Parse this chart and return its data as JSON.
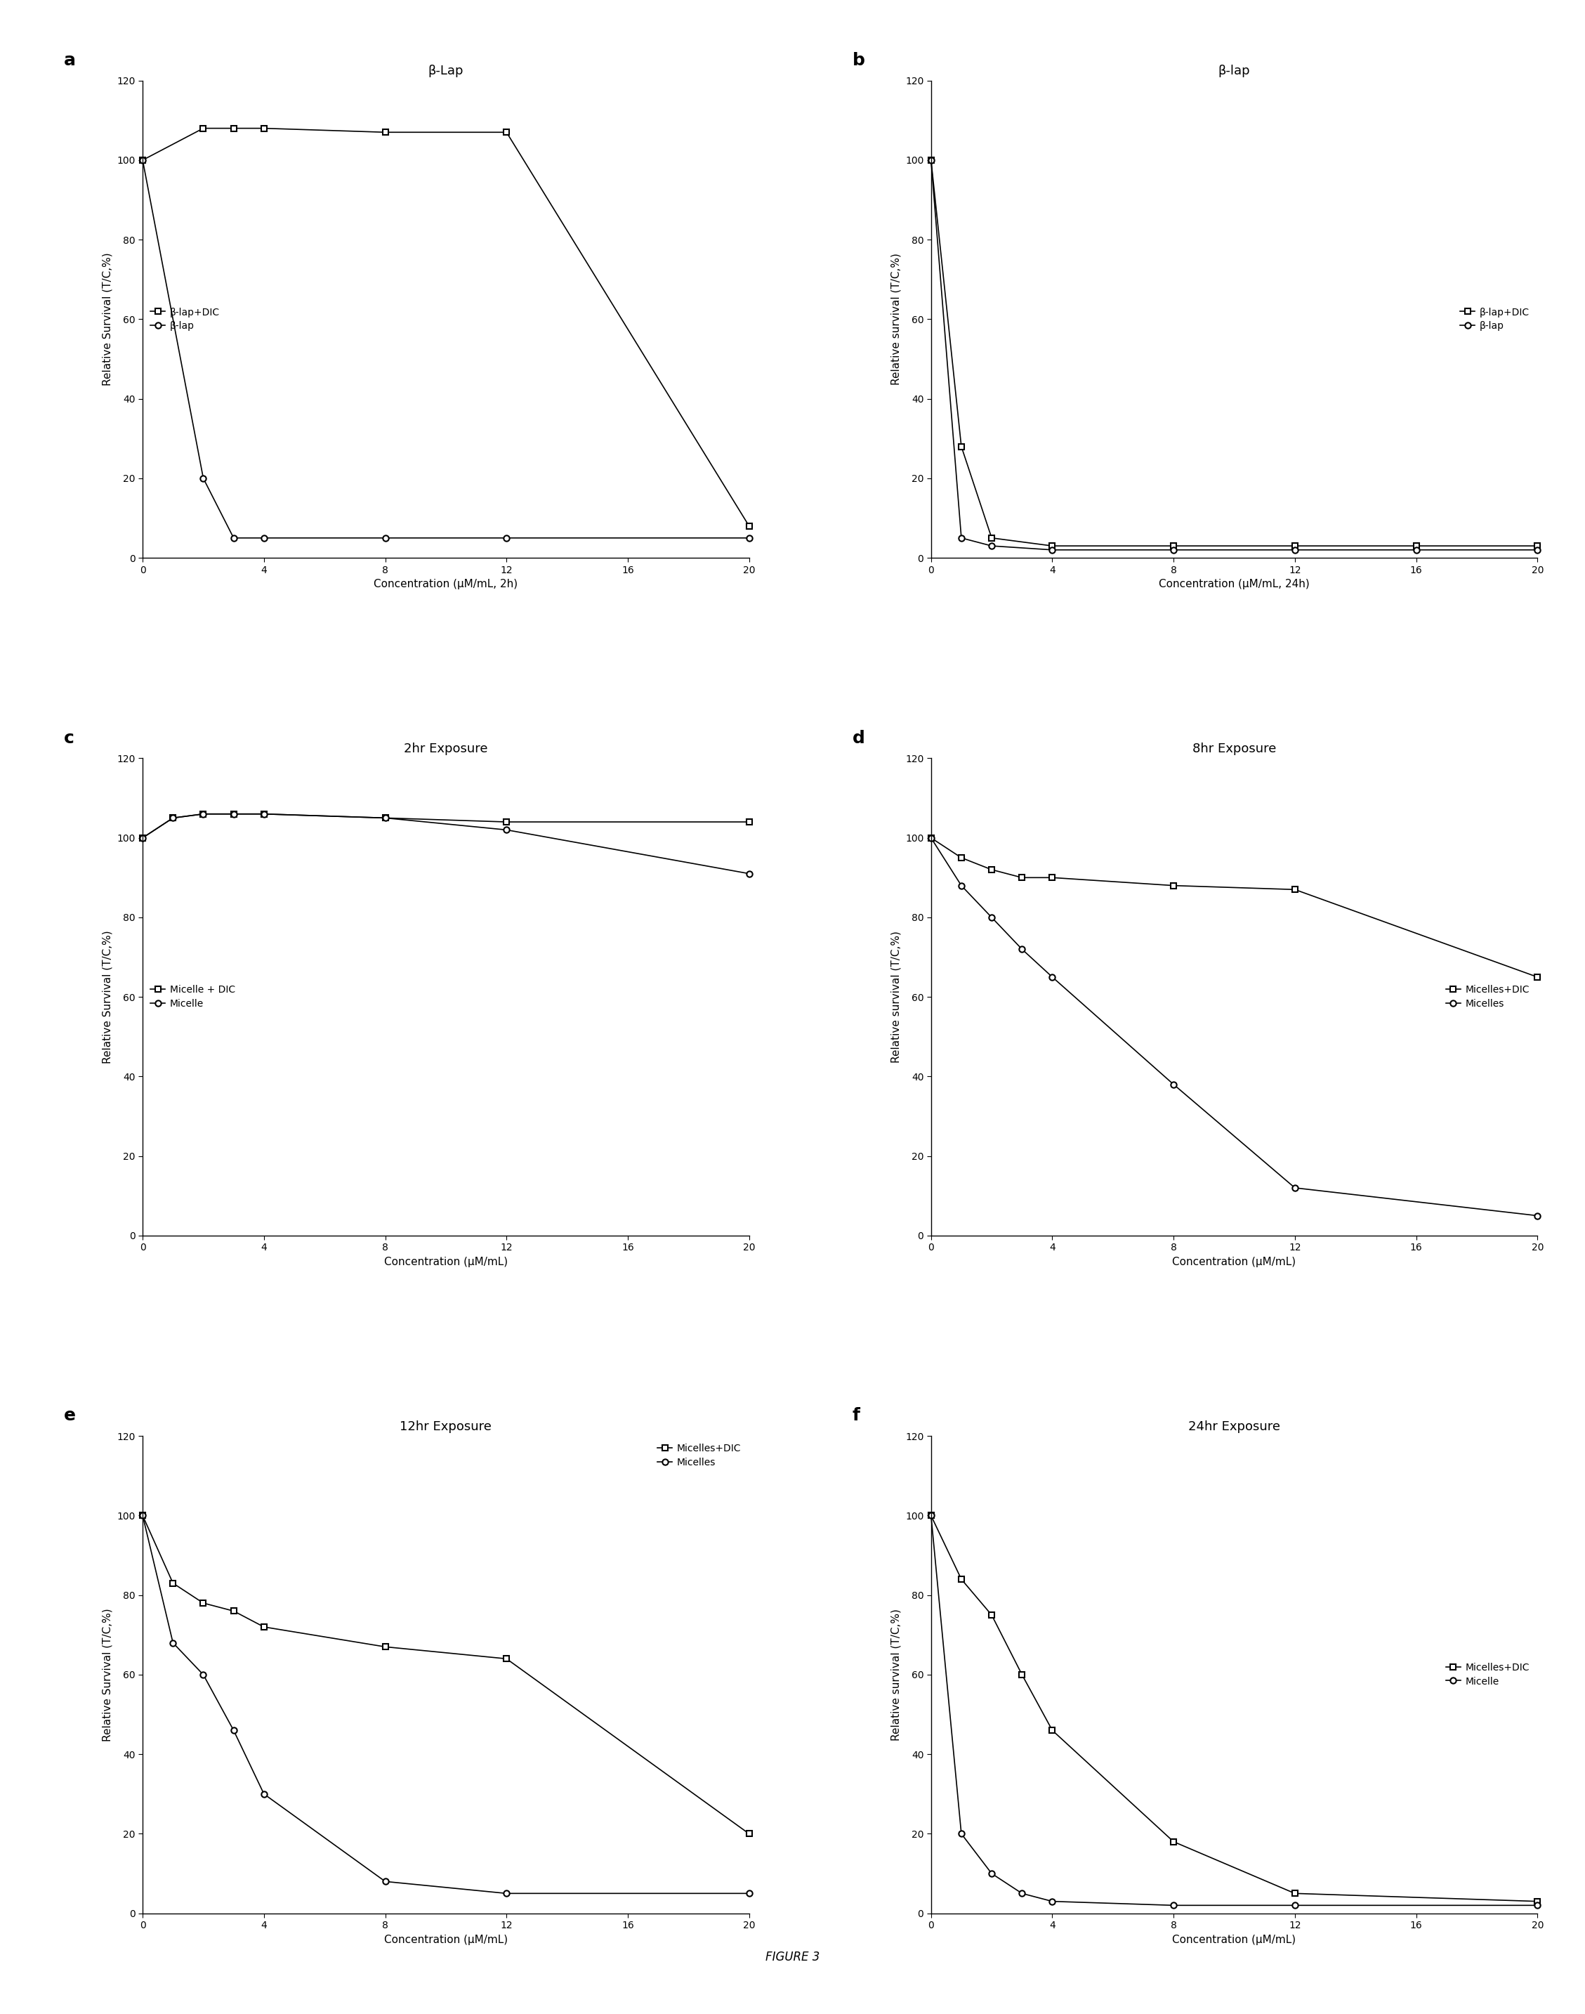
{
  "panel_a": {
    "title": "β-Lap",
    "xlabel": "Concentration (μM/mL, 2h)",
    "ylabel": "Relative Survival (T/C,%)",
    "panel_label": "a",
    "series": [
      {
        "label": "β-lap+DIC",
        "x": [
          0,
          2,
          3,
          4,
          8,
          12,
          20
        ],
        "y": [
          100,
          108,
          108,
          108,
          107,
          107,
          8
        ],
        "marker": "s",
        "color": "#000000"
      },
      {
        "label": "β-lap",
        "x": [
          0,
          2,
          3,
          4,
          8,
          12,
          20
        ],
        "y": [
          100,
          20,
          5,
          5,
          5,
          5,
          5
        ],
        "marker": "o",
        "color": "#000000"
      }
    ],
    "legend_loc": "center left",
    "ylim": [
      0,
      120
    ],
    "xlim": [
      0,
      20
    ],
    "yticks": [
      0,
      20,
      40,
      60,
      80,
      100,
      120
    ],
    "xticks": [
      0,
      4,
      8,
      12,
      16,
      20
    ]
  },
  "panel_b": {
    "title": "β-lap",
    "xlabel": "Concentration (μM/mL, 24h)",
    "ylabel": "Relative survival (T/C,%)",
    "panel_label": "b",
    "series": [
      {
        "label": "β-lap+DIC",
        "x": [
          0,
          1,
          2,
          4,
          8,
          12,
          16,
          20
        ],
        "y": [
          100,
          28,
          5,
          3,
          3,
          3,
          3,
          3
        ],
        "marker": "s",
        "color": "#000000"
      },
      {
        "label": "β-lap",
        "x": [
          0,
          1,
          2,
          4,
          8,
          12,
          16,
          20
        ],
        "y": [
          100,
          5,
          3,
          2,
          2,
          2,
          2,
          2
        ],
        "marker": "o",
        "color": "#000000"
      }
    ],
    "legend_loc": "center right",
    "ylim": [
      0,
      120
    ],
    "xlim": [
      0,
      20
    ],
    "yticks": [
      0,
      20,
      40,
      60,
      80,
      100,
      120
    ],
    "xticks": [
      0,
      4,
      8,
      12,
      16,
      20
    ]
  },
  "panel_c": {
    "title": "2hr Exposure",
    "xlabel": "Concentration (μM/mL)",
    "ylabel": "Relative Survival (T/C,%)",
    "panel_label": "c",
    "series": [
      {
        "label": "Micelle + DIC",
        "x": [
          0,
          1,
          2,
          3,
          4,
          8,
          12,
          20
        ],
        "y": [
          100,
          105,
          106,
          106,
          106,
          105,
          104,
          104
        ],
        "marker": "s",
        "color": "#000000"
      },
      {
        "label": "Micelle",
        "x": [
          0,
          1,
          2,
          3,
          4,
          8,
          12,
          20
        ],
        "y": [
          100,
          105,
          106,
          106,
          106,
          105,
          102,
          91
        ],
        "marker": "o",
        "color": "#000000"
      }
    ],
    "legend_loc": "center left",
    "ylim": [
      0,
      120
    ],
    "xlim": [
      0,
      20
    ],
    "yticks": [
      0,
      20,
      40,
      60,
      80,
      100,
      120
    ],
    "xticks": [
      0,
      4,
      8,
      12,
      16,
      20
    ]
  },
  "panel_d": {
    "title": "8hr Exposure",
    "xlabel": "Concentration (μM/mL)",
    "ylabel": "Relative survival (T/C,%)",
    "panel_label": "d",
    "series": [
      {
        "label": "Micelles+DIC",
        "x": [
          0,
          1,
          2,
          3,
          4,
          8,
          12,
          20
        ],
        "y": [
          100,
          95,
          92,
          90,
          90,
          88,
          87,
          65
        ],
        "marker": "s",
        "color": "#000000"
      },
      {
        "label": "Micelles",
        "x": [
          0,
          1,
          2,
          3,
          4,
          8,
          12,
          20
        ],
        "y": [
          100,
          88,
          80,
          72,
          65,
          38,
          12,
          5
        ],
        "marker": "o",
        "color": "#000000"
      }
    ],
    "legend_loc": "center right",
    "ylim": [
      0,
      120
    ],
    "xlim": [
      0,
      20
    ],
    "yticks": [
      0,
      20,
      40,
      60,
      80,
      100,
      120
    ],
    "xticks": [
      0,
      4,
      8,
      12,
      16,
      20
    ]
  },
  "panel_e": {
    "title": "12hr Exposure",
    "xlabel": "Concentration (μM/mL)",
    "ylabel": "Relative Survival (T/C,%)",
    "panel_label": "e",
    "series": [
      {
        "label": "Micelles+DIC",
        "x": [
          0,
          1,
          2,
          3,
          4,
          8,
          12,
          20
        ],
        "y": [
          100,
          83,
          78,
          76,
          72,
          67,
          64,
          20
        ],
        "marker": "s",
        "color": "#000000"
      },
      {
        "label": "Micelles",
        "x": [
          0,
          1,
          2,
          3,
          4,
          8,
          12,
          20
        ],
        "y": [
          100,
          68,
          60,
          46,
          30,
          8,
          5,
          5
        ],
        "marker": "o",
        "color": "#000000"
      }
    ],
    "legend_loc": "upper right",
    "ylim": [
      0,
      120
    ],
    "xlim": [
      0,
      20
    ],
    "yticks": [
      0,
      20,
      40,
      60,
      80,
      100,
      120
    ],
    "xticks": [
      0,
      4,
      8,
      12,
      16,
      20
    ]
  },
  "panel_f": {
    "title": "24hr Exposure",
    "xlabel": "Concentration (μM/mL)",
    "ylabel": "Relative survival (T/C,%)",
    "panel_label": "f",
    "series": [
      {
        "label": "Micelles+DIC",
        "x": [
          0,
          1,
          2,
          3,
          4,
          8,
          12,
          20
        ],
        "y": [
          100,
          84,
          75,
          60,
          46,
          18,
          5,
          3
        ],
        "marker": "s",
        "color": "#000000"
      },
      {
        "label": "Micelle",
        "x": [
          0,
          1,
          2,
          3,
          4,
          8,
          12,
          20
        ],
        "y": [
          100,
          20,
          10,
          5,
          3,
          2,
          2,
          2
        ],
        "marker": "o",
        "color": "#000000"
      }
    ],
    "legend_loc": "center right",
    "ylim": [
      0,
      120
    ],
    "xlim": [
      0,
      20
    ],
    "yticks": [
      0,
      20,
      40,
      60,
      80,
      100,
      120
    ],
    "xticks": [
      0,
      4,
      8,
      12,
      16,
      20
    ]
  },
  "figure_caption": "FIGURE 3",
  "background_color": "#ffffff",
  "markersize": 6,
  "linewidth": 1.2,
  "fontsize_title": 13,
  "fontsize_label": 11,
  "fontsize_tick": 10,
  "fontsize_legend": 10,
  "fontsize_panel_label": 18
}
